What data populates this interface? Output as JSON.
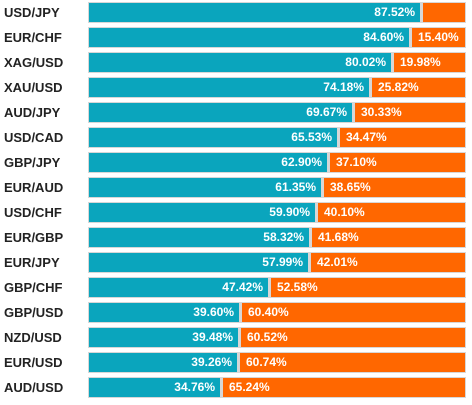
{
  "chart_data": {
    "type": "bar",
    "stacked": true,
    "orientation": "horizontal",
    "categories": [
      "USD/JPY",
      "EUR/CHF",
      "XAG/USD",
      "XAU/USD",
      "AUD/JPY",
      "USD/CAD",
      "GBP/JPY",
      "EUR/AUD",
      "USD/CHF",
      "EUR/GBP",
      "EUR/JPY",
      "GBP/CHF",
      "GBP/USD",
      "NZD/USD",
      "EUR/USD",
      "AUD/USD"
    ],
    "series": [
      {
        "values": [
          87.52,
          84.6,
          80.02,
          74.18,
          69.67,
          65.53,
          62.9,
          61.35,
          59.9,
          58.32,
          57.99,
          47.42,
          39.6,
          39.48,
          39.26,
          34.76
        ],
        "labels": [
          "87.52%",
          "84.60%",
          "80.02%",
          "74.18%",
          "69.67%",
          "65.53%",
          "62.90%",
          "61.35%",
          "59.90%",
          "58.32%",
          "57.99%",
          "47.42%",
          "39.60%",
          "39.48%",
          "39.26%",
          "34.76%"
        ]
      },
      {
        "values": [
          12.48,
          15.4,
          19.98,
          25.82,
          30.33,
          34.47,
          37.1,
          38.65,
          40.1,
          41.68,
          42.01,
          52.58,
          60.4,
          60.52,
          60.74,
          65.24
        ],
        "labels": [
          "",
          "15.40%",
          "19.98%",
          "25.82%",
          "30.33%",
          "34.47%",
          "37.10%",
          "38.65%",
          "40.10%",
          "41.68%",
          "42.01%",
          "52.58%",
          "60.40%",
          "60.52%",
          "60.74%",
          "65.24%"
        ]
      }
    ],
    "xlim": [
      0,
      100
    ],
    "colors": {
      "long": "#0aa5bd",
      "short": "#ff6700",
      "track": "#d7d7d7"
    },
    "legend": "none",
    "grid": false
  }
}
